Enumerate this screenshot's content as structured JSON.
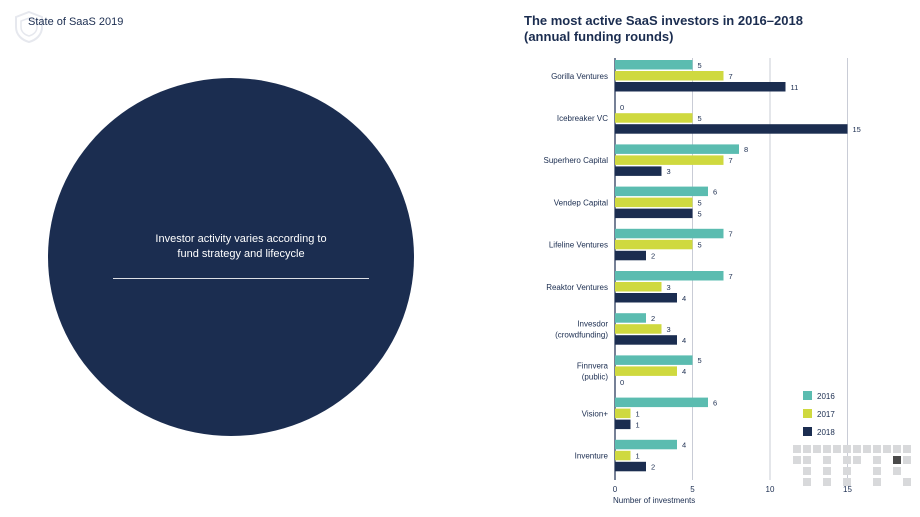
{
  "header": {
    "label": "State of SaaS 2019",
    "logo_icon": "shield-crest-icon"
  },
  "panel": {
    "text_line1": "Investor activity varies according to",
    "text_line2": "fund strategy and lifecycle",
    "color": "#1b2d50"
  },
  "chart_data": {
    "type": "bar",
    "orientation": "horizontal",
    "title_line1": "The most active SaaS investors in 2016–2018",
    "title_line2": "(annual funding rounds)",
    "xlabel": "Number of investments",
    "ylabel": "",
    "xlim": [
      0,
      17
    ],
    "xticks": [
      0,
      5,
      10,
      15
    ],
    "grid": "vertical",
    "legend_position": "bottom-right",
    "categories": [
      [
        "Gorilla Ventures"
      ],
      [
        "Icebreaker VC"
      ],
      [
        "Superhero Capital"
      ],
      [
        "Vendep Capital"
      ],
      [
        "Lifeline Ventures"
      ],
      [
        "Reaktor Ventures"
      ],
      [
        "Invesdor",
        "(crowdfunding)"
      ],
      [
        "Finnvera",
        "(public)"
      ],
      [
        "Vision+"
      ],
      [
        "Inventure"
      ]
    ],
    "series": [
      {
        "name": "2016",
        "color": "#5bbcb0",
        "values": [
          5,
          0,
          8,
          6,
          7,
          7,
          2,
          5,
          6,
          4
        ]
      },
      {
        "name": "2017",
        "color": "#cfd93f",
        "values": [
          7,
          5,
          7,
          5,
          5,
          3,
          3,
          4,
          1,
          1
        ]
      },
      {
        "name": "2018",
        "color": "#1b2d50",
        "values": [
          11,
          15,
          3,
          5,
          2,
          4,
          4,
          0,
          1,
          2
        ]
      }
    ]
  }
}
